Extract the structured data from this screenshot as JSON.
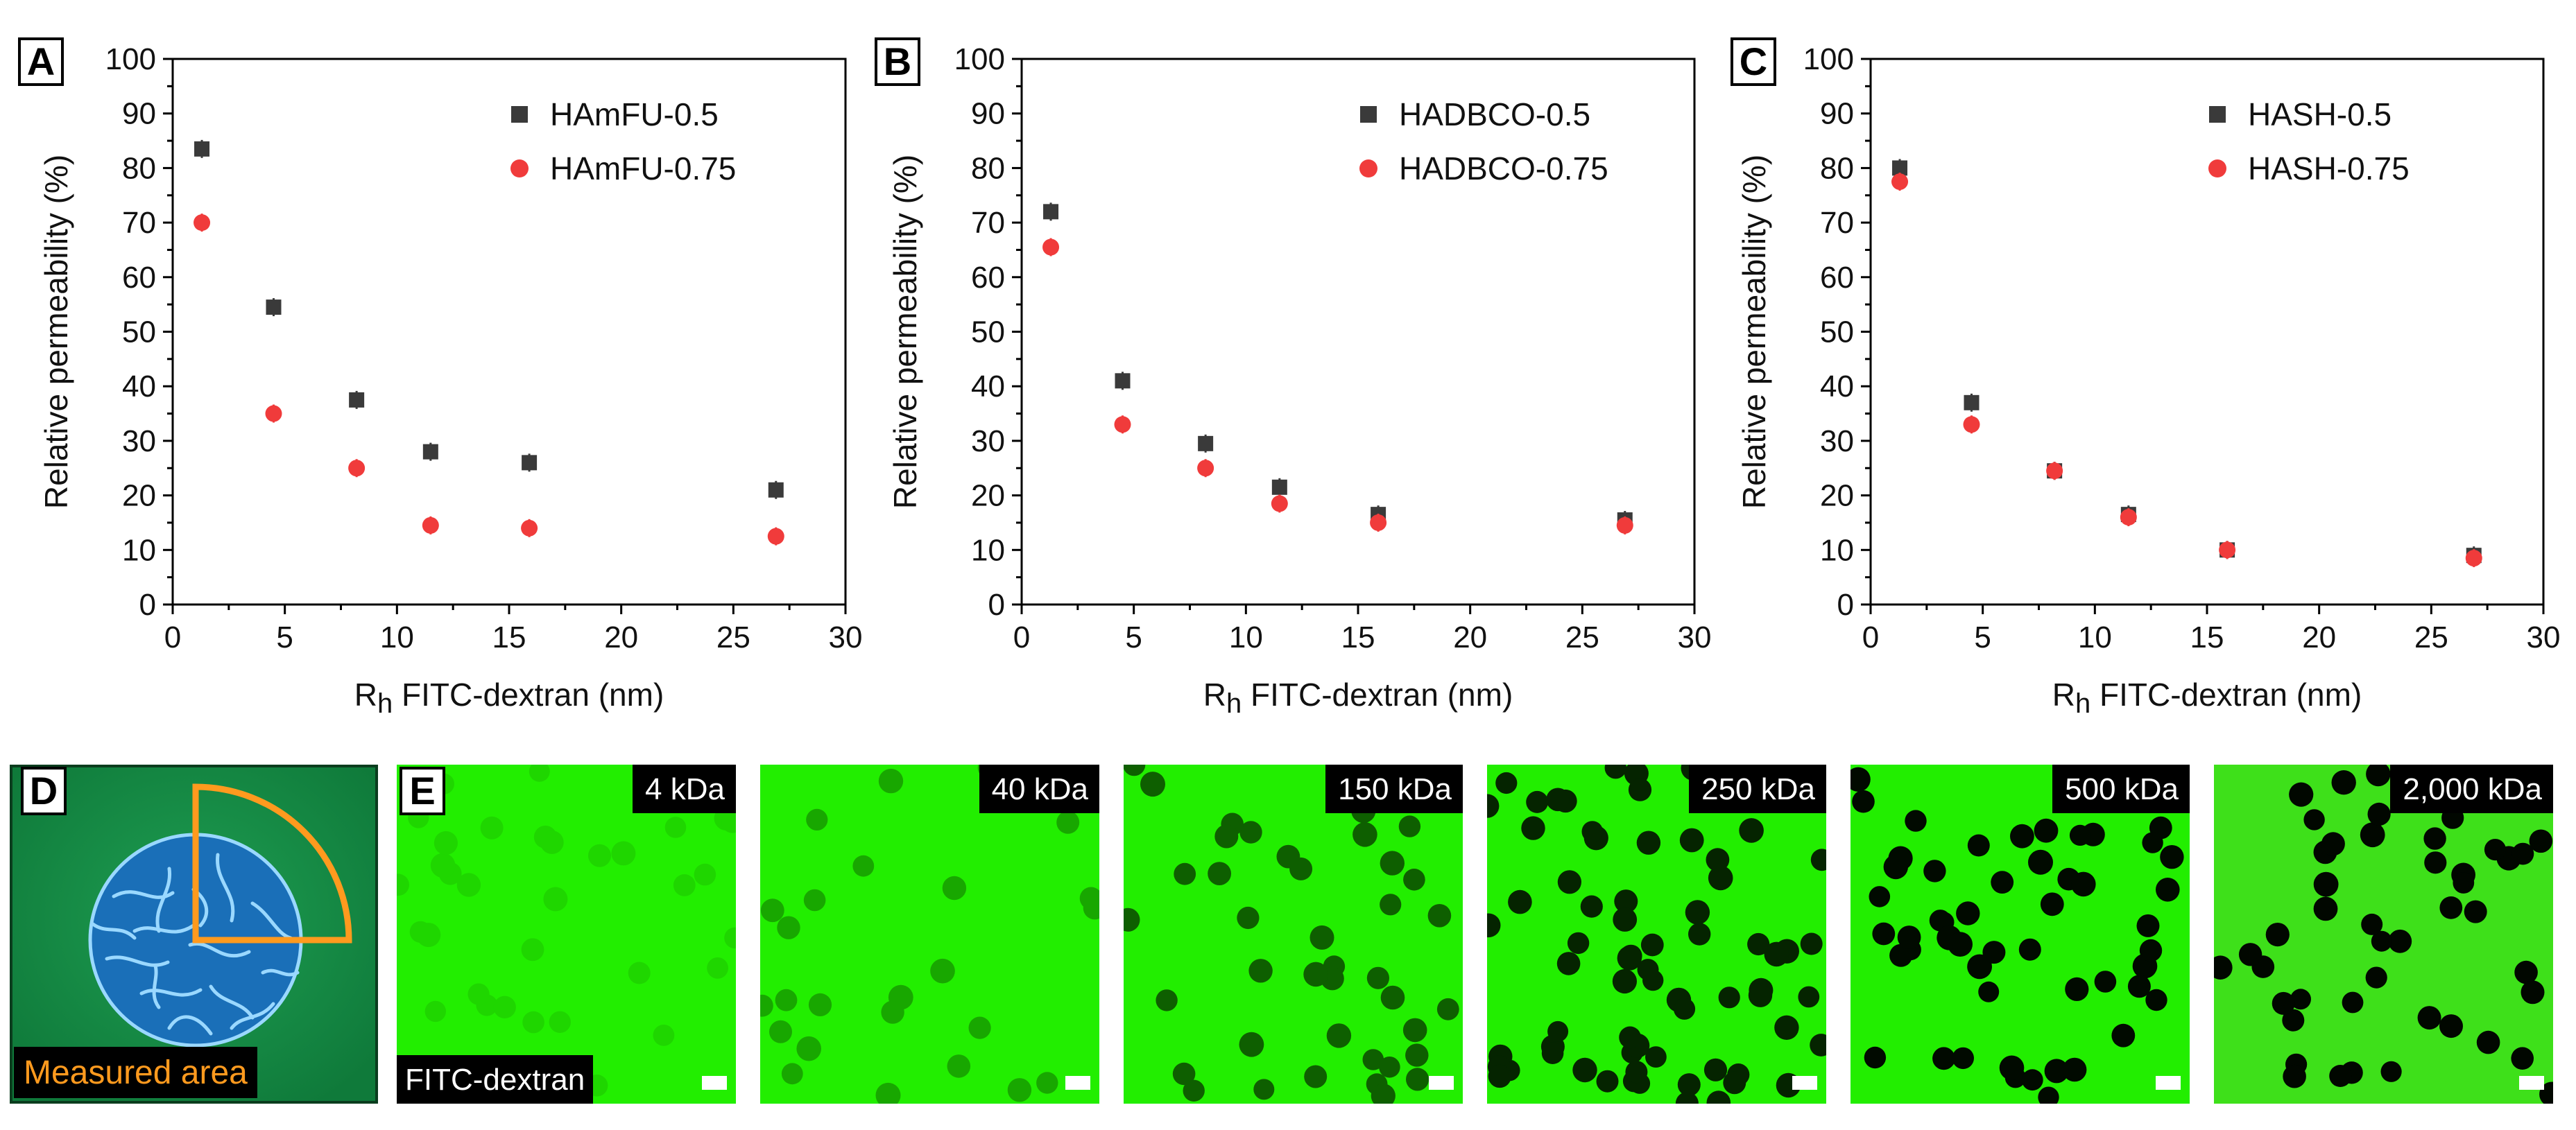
{
  "panel_letters": {
    "a": "A",
    "b": "B",
    "c": "C",
    "d": "D",
    "e": "E"
  },
  "colors": {
    "series_low": "#3a3a3a",
    "series_high": "#f03b3b",
    "fluor_green": "#22ee00",
    "highlight_orange": "#ff9a1e",
    "gel_blue": "#1a6fb8"
  },
  "chart_data": [
    {
      "type": "scatter",
      "xlabel_main": "R",
      "xlabel_sub": "h",
      "xlabel_rest": " FITC-dextran (nm)",
      "ylabel": "Relative permeability (%)",
      "xlim": [
        0,
        30
      ],
      "ylim": [
        0,
        100
      ],
      "xticks": [
        0,
        5,
        10,
        15,
        20,
        25,
        30
      ],
      "yticks": [
        0,
        10,
        20,
        30,
        40,
        50,
        60,
        70,
        80,
        90,
        100
      ],
      "legend_position": "top-right",
      "series": [
        {
          "name": "HAmFU-0.5",
          "marker": "square",
          "color": "#3a3a3a",
          "points": [
            {
              "x": 1.3,
              "y": 83.5
            },
            {
              "x": 4.5,
              "y": 54.5
            },
            {
              "x": 8.2,
              "y": 37.5
            },
            {
              "x": 11.5,
              "y": 28
            },
            {
              "x": 15.9,
              "y": 26
            },
            {
              "x": 26.9,
              "y": 21
            }
          ]
        },
        {
          "name": "HAmFU-0.75",
          "marker": "circle",
          "color": "#f03b3b",
          "points": [
            {
              "x": 1.3,
              "y": 70
            },
            {
              "x": 4.5,
              "y": 35
            },
            {
              "x": 8.2,
              "y": 25
            },
            {
              "x": 11.5,
              "y": 14.5
            },
            {
              "x": 15.9,
              "y": 14
            },
            {
              "x": 26.9,
              "y": 12.5
            }
          ]
        }
      ]
    },
    {
      "type": "scatter",
      "xlabel_main": "R",
      "xlabel_sub": "h",
      "xlabel_rest": " FITC-dextran (nm)",
      "ylabel": "Relative permeability (%)",
      "xlim": [
        0,
        30
      ],
      "ylim": [
        0,
        100
      ],
      "xticks": [
        0,
        5,
        10,
        15,
        20,
        25,
        30
      ],
      "yticks": [
        0,
        10,
        20,
        30,
        40,
        50,
        60,
        70,
        80,
        90,
        100
      ],
      "legend_position": "top-right",
      "series": [
        {
          "name": "HADBCO-0.5",
          "marker": "square",
          "color": "#3a3a3a",
          "points": [
            {
              "x": 1.3,
              "y": 72
            },
            {
              "x": 4.5,
              "y": 41
            },
            {
              "x": 8.2,
              "y": 29.5
            },
            {
              "x": 11.5,
              "y": 21.5
            },
            {
              "x": 15.9,
              "y": 16.5
            },
            {
              "x": 26.9,
              "y": 15.5
            }
          ]
        },
        {
          "name": "HADBCO-0.75",
          "marker": "circle",
          "color": "#f03b3b",
          "points": [
            {
              "x": 1.3,
              "y": 65.5
            },
            {
              "x": 4.5,
              "y": 33
            },
            {
              "x": 8.2,
              "y": 25
            },
            {
              "x": 11.5,
              "y": 18.5
            },
            {
              "x": 15.9,
              "y": 15
            },
            {
              "x": 26.9,
              "y": 14.5
            }
          ]
        }
      ]
    },
    {
      "type": "scatter",
      "xlabel_main": "R",
      "xlabel_sub": "h",
      "xlabel_rest": " FITC-dextran (nm)",
      "ylabel": "Relative permeability (%)",
      "xlim": [
        0,
        30
      ],
      "ylim": [
        0,
        100
      ],
      "xticks": [
        0,
        5,
        10,
        15,
        20,
        25,
        30
      ],
      "yticks": [
        0,
        10,
        20,
        30,
        40,
        50,
        60,
        70,
        80,
        90,
        100
      ],
      "legend_position": "top-right",
      "series": [
        {
          "name": "HASH-0.5",
          "marker": "square",
          "color": "#3a3a3a",
          "points": [
            {
              "x": 1.3,
              "y": 80
            },
            {
              "x": 4.5,
              "y": 37
            },
            {
              "x": 8.2,
              "y": 24.5
            },
            {
              "x": 11.5,
              "y": 16.5
            },
            {
              "x": 15.9,
              "y": 10
            },
            {
              "x": 26.9,
              "y": 9
            }
          ]
        },
        {
          "name": "HASH-0.75",
          "marker": "circle",
          "color": "#f03b3b",
          "points": [
            {
              "x": 1.3,
              "y": 77.5
            },
            {
              "x": 4.5,
              "y": 33
            },
            {
              "x": 8.2,
              "y": 24.5
            },
            {
              "x": 11.5,
              "y": 16
            },
            {
              "x": 15.9,
              "y": 10
            },
            {
              "x": 26.9,
              "y": 8.5
            }
          ]
        }
      ]
    }
  ],
  "diagram_d": {
    "label": "Measured area"
  },
  "micrographs": {
    "probe_label": "FITC-dextran",
    "tiles": [
      {
        "label": "4 kDa",
        "bead_darkness": 0.1
      },
      {
        "label": "40 kDa",
        "bead_darkness": 0.3
      },
      {
        "label": "150 kDa",
        "bead_darkness": 0.6
      },
      {
        "label": "250 kDa",
        "bead_darkness": 0.85
      },
      {
        "label": "500 kDa",
        "bead_darkness": 0.96
      },
      {
        "label": "2,000 kDa",
        "bead_darkness": 0.97
      }
    ]
  }
}
